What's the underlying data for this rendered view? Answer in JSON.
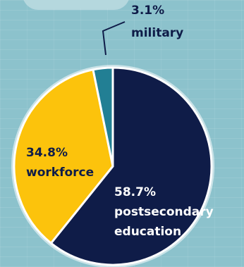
{
  "chart_data": {
    "type": "pie",
    "slices": [
      {
        "label": "postsecondary education",
        "value": 58.7,
        "display": "58.7%",
        "color": "#0f1c48"
      },
      {
        "label": "workforce",
        "value": 34.8,
        "display": "34.8%",
        "color": "#fcc30c"
      },
      {
        "label": "military",
        "value": 3.1,
        "display": "3.1%",
        "color": "#227f94"
      }
    ],
    "callouts": {
      "military": {
        "pct": "3.1%",
        "name": "military"
      },
      "workforce": {
        "pct": "34.8%",
        "name": "workforce"
      },
      "postsecondary": {
        "pct": "58.7%",
        "line1": "postsecondary",
        "line2": "education"
      }
    }
  }
}
